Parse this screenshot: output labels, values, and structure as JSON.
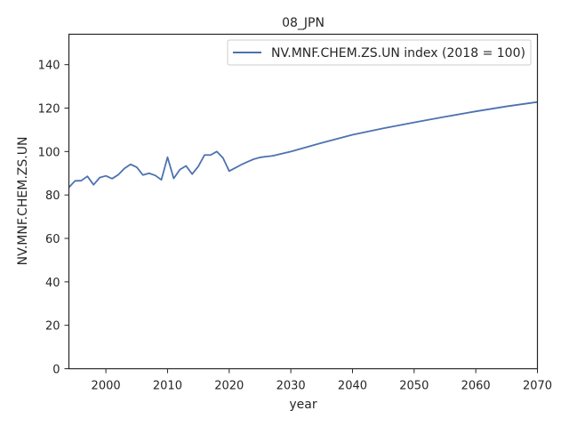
{
  "chart_data": {
    "type": "line",
    "title": "08_JPN",
    "xlabel": "year",
    "ylabel": "NV.MNF.CHEM.ZS.UN",
    "xlim": [
      1994,
      2070
    ],
    "ylim": [
      0,
      154
    ],
    "xticks": [
      2000,
      2010,
      2020,
      2030,
      2040,
      2050,
      2060,
      2070
    ],
    "yticks": [
      0,
      20,
      40,
      60,
      80,
      100,
      120,
      140
    ],
    "grid": false,
    "legend": "top-right",
    "series": [
      {
        "name": "NV.MNF.CHEM.ZS.UN index (2018 = 100)",
        "color": "#4c72b0",
        "x": [
          1994,
          1995,
          1996,
          1997,
          1998,
          1999,
          2000,
          2001,
          2002,
          2003,
          2004,
          2005,
          2006,
          2007,
          2008,
          2009,
          2010,
          2011,
          2012,
          2013,
          2014,
          2015,
          2016,
          2017,
          2018,
          2019,
          2020,
          2021,
          2022,
          2023,
          2024,
          2025,
          2026,
          2027,
          2030,
          2035,
          2040,
          2045,
          2050,
          2055,
          2060,
          2065,
          2070
        ],
        "y": [
          83.5,
          86.5,
          86.6,
          88.6,
          84.7,
          88.0,
          88.8,
          87.5,
          89.3,
          92.2,
          94.1,
          92.8,
          89.2,
          90.0,
          89.0,
          87.0,
          97.4,
          87.6,
          91.7,
          93.4,
          89.6,
          93.2,
          98.4,
          98.4,
          100.0,
          97.0,
          91.0,
          92.5,
          94.0,
          95.3,
          96.5,
          97.3,
          97.7,
          98.0,
          100.0,
          104.0,
          107.7,
          110.7,
          113.4,
          116.0,
          118.5,
          120.8,
          122.8
        ]
      }
    ]
  }
}
